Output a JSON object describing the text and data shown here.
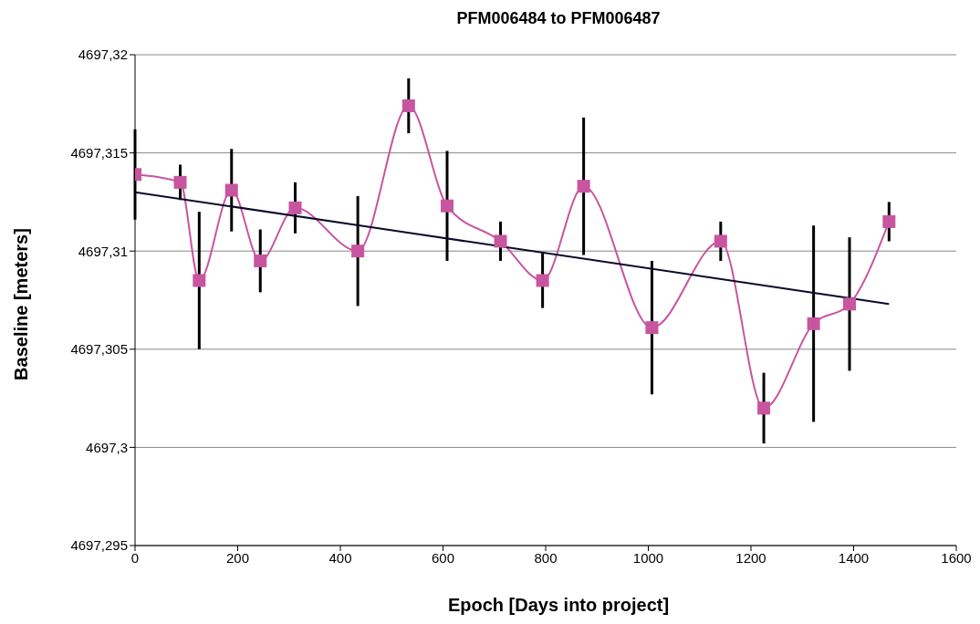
{
  "chart_data": {
    "type": "line",
    "title": "PFM006484 to PFM006487",
    "xlabel": "Epoch [Days into project]",
    "ylabel": "Baseline [meters]",
    "x": [
      0,
      88,
      125,
      188,
      244,
      312,
      434,
      533,
      608,
      712,
      794,
      874,
      1007,
      1141,
      1225,
      1322,
      1392,
      1469
    ],
    "series": [
      {
        "color": "#c8559f",
        "values": [
          4697.3139,
          4697.3135,
          4697.3085,
          4697.3131,
          4697.3095,
          4697.3122,
          4697.31,
          4697.3174,
          4697.3123,
          4697.3105,
          4697.3085,
          4697.3133,
          4697.3061,
          4697.3105,
          4697.302,
          4697.3063,
          4697.3073,
          4697.3115
        ],
        "errors": [
          0.0023,
          0.0009,
          0.0035,
          0.0021,
          0.0016,
          0.0013,
          0.0028,
          0.0014,
          0.0028,
          0.001,
          0.0014,
          0.0035,
          0.0034,
          0.001,
          0.0018,
          0.005,
          0.0034,
          0.001
        ]
      },
      {
        "x": [
          0,
          1469
        ],
        "values": [
          4697.313,
          4697.3073
        ],
        "color": "#0a0a2a",
        "marker": "none"
      }
    ],
    "marker": "square",
    "grid": "y",
    "legend": false,
    "xlim": [
      0,
      1600
    ],
    "xticks": [
      0,
      200,
      400,
      600,
      800,
      1000,
      1200,
      1400,
      1600
    ],
    "ylim": [
      4697.295,
      4697.32
    ],
    "yticks": [
      {
        "value": 4697.295,
        "label": "4697,295"
      },
      {
        "value": 4697.3,
        "label": "4697,3"
      },
      {
        "value": 4697.305,
        "label": "4697,305"
      },
      {
        "value": 4697.31,
        "label": "4697,31"
      },
      {
        "value": 4697.315,
        "label": "4697,315"
      },
      {
        "value": 4697.32,
        "label": "4697,32"
      }
    ]
  }
}
